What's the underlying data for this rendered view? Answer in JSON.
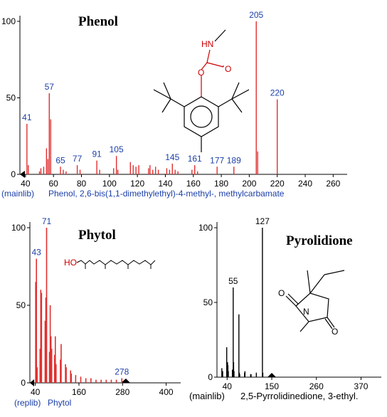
{
  "chart_data": [
    {
      "id": "phenol",
      "type": "bar",
      "title": "Phenol",
      "library": "(mainlib)",
      "compound": "Phenol, 2,6-bis(1,1-dimethylethyl)-4-methyl-, methylcarbamate",
      "xlim": [
        36,
        270
      ],
      "ylim": [
        0,
        100
      ],
      "x_ticks": [
        40,
        60,
        80,
        100,
        120,
        140,
        160,
        180,
        200,
        220,
        240,
        260
      ],
      "y_ticks": [
        0,
        50,
        100
      ],
      "bar_color": "#e03030",
      "label_color": "#1c3fa8",
      "peaks": [
        {
          "x": 41,
          "y": 33
        },
        {
          "x": 42,
          "y": 6
        },
        {
          "x": 50,
          "y": 2
        },
        {
          "x": 51,
          "y": 4
        },
        {
          "x": 53,
          "y": 5
        },
        {
          "x": 55,
          "y": 17
        },
        {
          "x": 56,
          "y": 10
        },
        {
          "x": 57,
          "y": 53
        },
        {
          "x": 58,
          "y": 36
        },
        {
          "x": 65,
          "y": 5
        },
        {
          "x": 67,
          "y": 3
        },
        {
          "x": 69,
          "y": 2
        },
        {
          "x": 77,
          "y": 6
        },
        {
          "x": 79,
          "y": 3
        },
        {
          "x": 91,
          "y": 9
        },
        {
          "x": 93,
          "y": 3
        },
        {
          "x": 103,
          "y": 4
        },
        {
          "x": 105,
          "y": 12
        },
        {
          "x": 106,
          "y": 3
        },
        {
          "x": 115,
          "y": 8
        },
        {
          "x": 117,
          "y": 6
        },
        {
          "x": 119,
          "y": 5
        },
        {
          "x": 121,
          "y": 6
        },
        {
          "x": 128,
          "y": 4
        },
        {
          "x": 129,
          "y": 6
        },
        {
          "x": 131,
          "y": 3
        },
        {
          "x": 133,
          "y": 5
        },
        {
          "x": 135,
          "y": 3
        },
        {
          "x": 141,
          "y": 4
        },
        {
          "x": 143,
          "y": 3
        },
        {
          "x": 145,
          "y": 7
        },
        {
          "x": 147,
          "y": 3
        },
        {
          "x": 149,
          "y": 2
        },
        {
          "x": 159,
          "y": 3
        },
        {
          "x": 161,
          "y": 6
        },
        {
          "x": 163,
          "y": 2
        },
        {
          "x": 177,
          "y": 5
        },
        {
          "x": 189,
          "y": 5
        },
        {
          "x": 205,
          "y": 100
        },
        {
          "x": 206,
          "y": 15
        },
        {
          "x": 220,
          "y": 49
        }
      ],
      "labels": [
        41,
        57,
        65,
        77,
        91,
        105,
        145,
        161,
        177,
        189,
        205,
        220
      ],
      "structure": {
        "atoms": [
          "HN",
          "O",
          "O"
        ]
      }
    },
    {
      "id": "phytol",
      "type": "bar",
      "title": "Phytol",
      "library": "(replib)",
      "compound": "Phytol",
      "xlim": [
        25,
        440
      ],
      "ylim": [
        0,
        100
      ],
      "x_ticks": [
        40,
        160,
        280,
        400
      ],
      "y_ticks": [
        0,
        50,
        100
      ],
      "bar_color": "#e03030",
      "label_color": "#1c3fa8",
      "peaks": [
        {
          "x": 41,
          "y": 65
        },
        {
          "x": 43,
          "y": 80
        },
        {
          "x": 45,
          "y": 10
        },
        {
          "x": 53,
          "y": 22
        },
        {
          "x": 55,
          "y": 60
        },
        {
          "x": 57,
          "y": 58
        },
        {
          "x": 67,
          "y": 40
        },
        {
          "x": 69,
          "y": 55
        },
        {
          "x": 71,
          "y": 100
        },
        {
          "x": 79,
          "y": 20
        },
        {
          "x": 81,
          "y": 50
        },
        {
          "x": 83,
          "y": 30
        },
        {
          "x": 85,
          "y": 22
        },
        {
          "x": 93,
          "y": 18
        },
        {
          "x": 95,
          "y": 30
        },
        {
          "x": 97,
          "y": 12
        },
        {
          "x": 109,
          "y": 15
        },
        {
          "x": 111,
          "y": 25
        },
        {
          "x": 123,
          "y": 12
        },
        {
          "x": 125,
          "y": 10
        },
        {
          "x": 137,
          "y": 8
        },
        {
          "x": 139,
          "y": 6
        },
        {
          "x": 151,
          "y": 5
        },
        {
          "x": 165,
          "y": 4
        },
        {
          "x": 179,
          "y": 3
        },
        {
          "x": 193,
          "y": 3
        },
        {
          "x": 207,
          "y": 2
        },
        {
          "x": 221,
          "y": 2
        },
        {
          "x": 235,
          "y": 2
        },
        {
          "x": 249,
          "y": 2
        },
        {
          "x": 263,
          "y": 2
        },
        {
          "x": 278,
          "y": 3
        }
      ],
      "labels": [
        43,
        71,
        278
      ],
      "structure": {
        "atoms": [
          "HO"
        ]
      }
    },
    {
      "id": "pyrolidione",
      "type": "bar",
      "title": "Pyrolidione",
      "library": "(mainlib)",
      "compound": "2,5-Pyrrolidinedione, 3-ethyl.",
      "xlim": [
        15,
        420
      ],
      "ylim": [
        0,
        100
      ],
      "x_ticks": [
        40,
        150,
        260,
        370
      ],
      "y_ticks": [
        0,
        50,
        100
      ],
      "bar_color": "#000000",
      "label_color": "#000000",
      "peaks": [
        {
          "x": 27,
          "y": 6
        },
        {
          "x": 29,
          "y": 4
        },
        {
          "x": 39,
          "y": 20
        },
        {
          "x": 41,
          "y": 10
        },
        {
          "x": 42,
          "y": 8
        },
        {
          "x": 43,
          "y": 4
        },
        {
          "x": 53,
          "y": 5
        },
        {
          "x": 55,
          "y": 60
        },
        {
          "x": 56,
          "y": 10
        },
        {
          "x": 57,
          "y": 4
        },
        {
          "x": 69,
          "y": 42
        },
        {
          "x": 70,
          "y": 3
        },
        {
          "x": 71,
          "y": 2
        },
        {
          "x": 83,
          "y": 3
        },
        {
          "x": 84,
          "y": 4
        },
        {
          "x": 98,
          "y": 2
        },
        {
          "x": 99,
          "y": 2
        },
        {
          "x": 112,
          "y": 3
        },
        {
          "x": 127,
          "y": 100
        },
        {
          "x": 128,
          "y": 3
        }
      ],
      "labels": [
        55,
        127
      ],
      "structure": {
        "atoms": [
          "O",
          "N",
          "O"
        ]
      }
    }
  ]
}
